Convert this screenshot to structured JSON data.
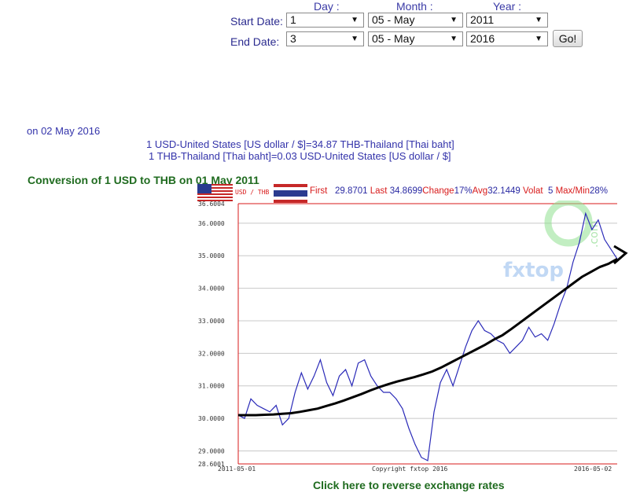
{
  "form": {
    "headers": {
      "day": "Day :",
      "month": "Month :",
      "year": "Year :"
    },
    "start_label": "Start Date:",
    "end_label": "End Date:",
    "start": {
      "day": "1",
      "month": "05 - May",
      "year": "2011"
    },
    "end": {
      "day": "3",
      "month": "05 - May",
      "year": "2016"
    },
    "go_label": "Go!"
  },
  "info": {
    "date_line": "on 02 May 2016",
    "rate1": "1 USD-United States [US dollar / $]=34.87 THB-Thailand [Thai baht]",
    "rate2": "1 THB-Thailand [Thai baht]=0.03 USD-United States [US dollar / $]"
  },
  "conversion_title": "Conversion of 1 USD to THB on 01 May 2011",
  "chart_header": {
    "pair": "USD / THB",
    "first_label": "First",
    "first_value": "29.8701",
    "last_label": "Last",
    "last_value": "34.8699",
    "change_label": "Change",
    "change_value": "17%",
    "avg_label": "Avg",
    "avg_value": "32.1449",
    "volat_label": "Volat",
    "volat_value": "5",
    "maxmin_label": "Max/Min",
    "maxmin_value": "28%"
  },
  "watermark": {
    "text": "fxtop",
    "text2": ".com"
  },
  "colors": {
    "series": "#2a2ab8",
    "trend": "#000000",
    "axis": "#d81b1b",
    "grid": "#c8c8c8"
  },
  "chart_data": {
    "type": "line",
    "title": "",
    "ylim": [
      28.6001,
      36.6004
    ],
    "y_ticks": [
      "36.6004",
      "36.0000",
      "35.0000",
      "34.0000",
      "33.0000",
      "32.0000",
      "31.0000",
      "30.0000",
      "29.0000",
      "28.6001"
    ],
    "x_tick_labels": [
      "2011-05-01",
      "2016-05-02"
    ],
    "footer_text": "Copyright fxtop 2016",
    "x_range": [
      0,
      60
    ],
    "series": [
      {
        "values": [
          30.1,
          30.0,
          30.6,
          30.4,
          30.3,
          30.2,
          30.4,
          29.8,
          30.0,
          30.8,
          31.4,
          30.9,
          31.3,
          31.8,
          31.1,
          30.7,
          31.3,
          31.5,
          31.0,
          31.7,
          31.8,
          31.3,
          31.0,
          30.8,
          30.8,
          30.6,
          30.3,
          29.7,
          29.2,
          28.8,
          28.7,
          30.2,
          31.1,
          31.5,
          31.0,
          31.6,
          32.2,
          32.7,
          33.0,
          32.7,
          32.6,
          32.4,
          32.3,
          32.0,
          32.2,
          32.4,
          32.8,
          32.5,
          32.6,
          32.4,
          32.9,
          33.5,
          34.0,
          34.8,
          35.4,
          36.3,
          35.8,
          36.1,
          35.5,
          35.2,
          34.9
        ]
      },
      {
        "values": [
          30.1,
          30.1,
          30.1,
          30.11,
          30.12,
          30.14,
          30.16,
          30.2,
          30.25,
          30.3,
          30.38,
          30.46,
          30.55,
          30.65,
          30.75,
          30.86,
          30.96,
          31.05,
          31.13,
          31.2,
          31.27,
          31.35,
          31.44,
          31.56,
          31.7,
          31.84,
          31.98,
          32.12,
          32.26,
          32.42,
          32.56,
          32.75,
          32.95,
          33.15,
          33.35,
          33.55,
          33.75,
          33.95,
          34.15,
          34.35,
          34.5,
          34.65,
          34.75,
          34.9
        ]
      }
    ],
    "grid": true,
    "legend": "none"
  }
}
